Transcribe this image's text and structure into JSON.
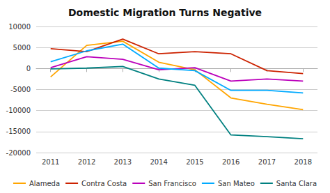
{
  "chart_data": {
    "type": "line",
    "title": "Domestic Migration Turns Negative",
    "x": [
      2011,
      2012,
      2013,
      2014,
      2015,
      2016,
      2017,
      2018
    ],
    "series": [
      {
        "name": "Alameda",
        "color": "#FFA500",
        "values": [
          -2000,
          5500,
          6500,
          1500,
          -300,
          -7000,
          -8500,
          -9800
        ]
      },
      {
        "name": "Contra Costa",
        "color": "#CC2200",
        "values": [
          4700,
          4000,
          7000,
          3500,
          4000,
          3500,
          -500,
          -1200
        ]
      },
      {
        "name": "San Francisco",
        "color": "#BB00BB",
        "values": [
          200,
          2800,
          2200,
          -300,
          200,
          -3000,
          -2500,
          -3000
        ]
      },
      {
        "name": "San Mateo",
        "color": "#00AAFF",
        "values": [
          1600,
          4200,
          5800,
          100,
          -500,
          -5200,
          -5200,
          -5800
        ]
      },
      {
        "name": "Santa Clara",
        "color": "#008080",
        "values": [
          -100,
          100,
          500,
          -2500,
          -4000,
          -15800,
          -16200,
          -16700
        ]
      }
    ],
    "xlim": [
      2010.6,
      2018.4
    ],
    "xticks": [
      2011,
      2012,
      2013,
      2014,
      2015,
      2016,
      2017,
      2018
    ],
    "ylim": [
      -20000,
      10000
    ],
    "yticks": [
      -20000,
      -15000,
      -10000,
      -5000,
      0,
      5000,
      10000
    ],
    "grid": true,
    "legend": "bottom"
  }
}
